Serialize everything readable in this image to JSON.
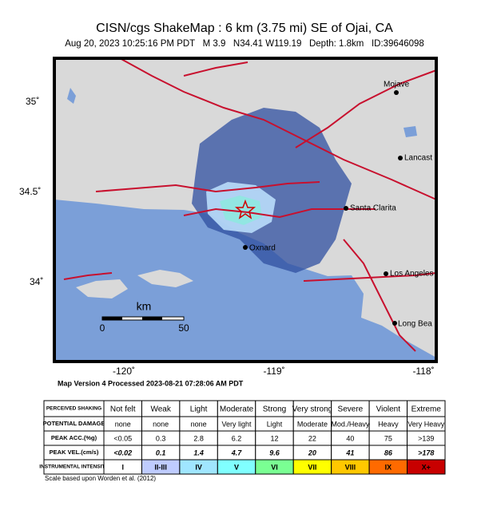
{
  "header": {
    "title": "CISN/cgs ShakeMap : 6  km (3.75 mi) SE of Ojai, CA",
    "subtitle": "Aug 20, 2023 10:25:16 PM PDT   M 3.9   N34.41 W119.19   Depth: 1.8km   ID:39646098"
  },
  "map": {
    "lat_labels": [
      "35˚",
      "34.5˚",
      "34˚"
    ],
    "lon_labels": [
      "-120˚",
      "-119˚",
      "-118˚"
    ],
    "places": [
      "Mojave",
      "Lancast",
      "Santa Clarita",
      "Oxnard",
      "Los Angeles",
      "Long Bea"
    ],
    "scale_bar": {
      "unit": "km",
      "labels": [
        "0",
        "50"
      ]
    }
  },
  "version_note": "Map Version 4 Processed 2023-08-21 07:28:06 AM PDT",
  "legend_table": {
    "row_headers": [
      "PERCEIVED SHAKING",
      "POTENTIAL DAMAGE",
      "PEAK ACC.(%g)",
      "PEAK VEL.(cm/s)",
      "INSTRUMENTAL INTENSITY"
    ],
    "rows": [
      [
        "Not felt",
        "Weak",
        "Light",
        "Moderate",
        "Strong",
        "Very strong",
        "Severe",
        "Violent",
        "Extreme"
      ],
      [
        "none",
        "none",
        "none",
        "Very light",
        "Light",
        "Moderate",
        "Mod./Heavy",
        "Heavy",
        "Very Heavy"
      ],
      [
        "<0.05",
        "0.3",
        "2.8",
        "6.2",
        "12",
        "22",
        "40",
        "75",
        ">139"
      ],
      [
        "<0.02",
        "0.1",
        "1.4",
        "4.7",
        "9.6",
        "20",
        "41",
        "86",
        ">178"
      ],
      [
        "I",
        "II-III",
        "IV",
        "V",
        "VI",
        "VII",
        "VIII",
        "IX",
        "X+"
      ]
    ]
  },
  "footnote": "Scale based upon Worden et al. (2012)"
}
